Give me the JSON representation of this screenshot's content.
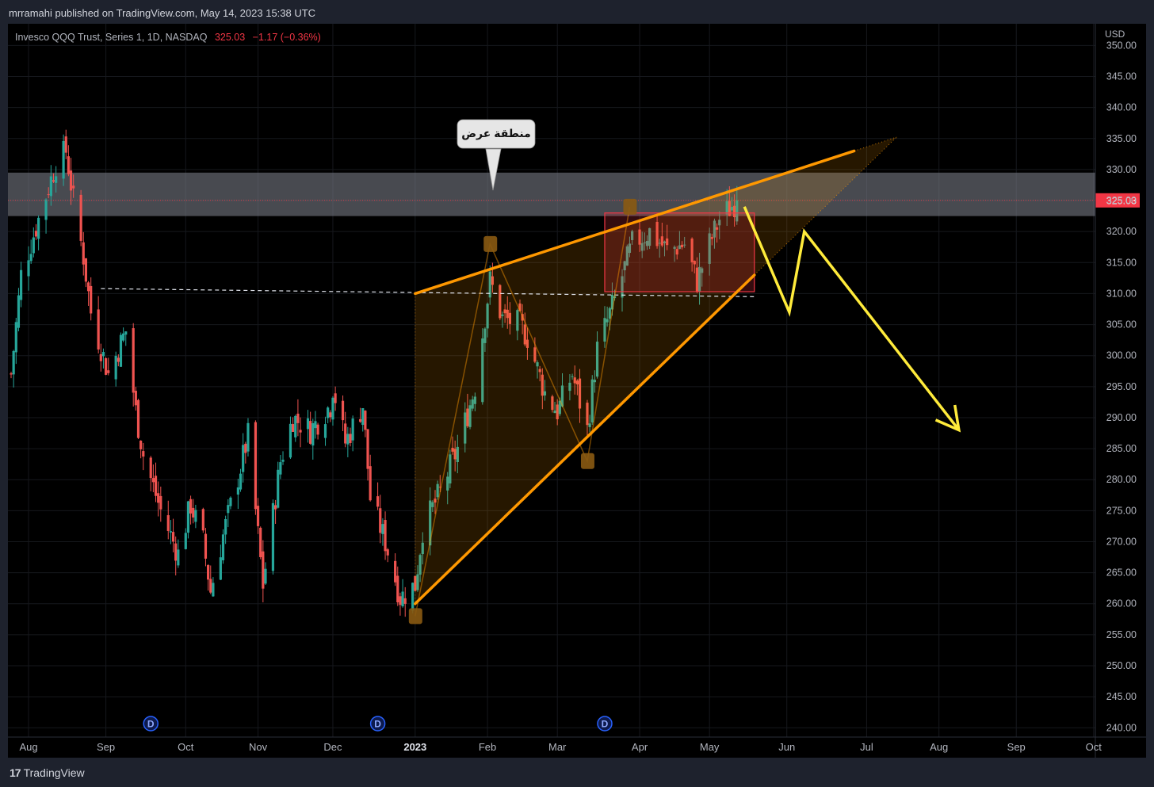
{
  "publish_line": "mrramahi published on TradingView.com, May 14, 2023 15:38 UTC",
  "legend": {
    "symbol_text": "Invesco QQQ Trust, Series 1, 1D, NASDAQ",
    "last": "325.03",
    "change": "−1.17 (−0.36%)"
  },
  "footer": {
    "logo_text": "TradingView"
  },
  "colors": {
    "up": "#26a69a",
    "down": "#ef5350",
    "wedge": "#ff9800",
    "projection": "#ffeb3b",
    "zone": "#787b86",
    "box": "#f23645"
  },
  "icons": [
    "tradingview-logo-icon",
    "dividend-icon"
  ],
  "chart_data": {
    "type": "candlestick",
    "currency_label": "USD",
    "y_ticks": [
      "350.00",
      "345.00",
      "340.00",
      "335.00",
      "330.00",
      "325.00",
      "320.00",
      "315.00",
      "310.00",
      "305.00",
      "300.00",
      "295.00",
      "290.00",
      "285.00",
      "280.00",
      "275.00",
      "270.00",
      "265.00",
      "260.00",
      "255.00",
      "250.00",
      "245.00",
      "240.00"
    ],
    "ylim": [
      238.5,
      353.5
    ],
    "x_start": "2022-07-25",
    "x_ticks": [
      {
        "label": "Aug",
        "date": "2022-08-01",
        "bold": false
      },
      {
        "label": "Sep",
        "date": "2022-09-01",
        "bold": false
      },
      {
        "label": "Oct",
        "date": "2022-10-03",
        "bold": false
      },
      {
        "label": "Nov",
        "date": "2022-11-01",
        "bold": false
      },
      {
        "label": "Dec",
        "date": "2022-12-01",
        "bold": false
      },
      {
        "label": "2023",
        "date": "2023-01-03",
        "bold": true
      },
      {
        "label": "Feb",
        "date": "2023-02-01",
        "bold": false
      },
      {
        "label": "Mar",
        "date": "2023-03-01",
        "bold": false
      },
      {
        "label": "Apr",
        "date": "2023-04-03",
        "bold": false
      },
      {
        "label": "May",
        "date": "2023-05-01",
        "bold": false
      },
      {
        "label": "Jun",
        "date": "2023-06-01",
        "bold": false
      },
      {
        "label": "Jul",
        "date": "2023-07-03",
        "bold": false
      },
      {
        "label": "Aug",
        "date": "2023-08-01",
        "bold": false
      },
      {
        "label": "Sep",
        "date": "2023-09-01",
        "bold": false
      },
      {
        "label": "Oct",
        "date": "2023-10-02",
        "bold": false
      }
    ],
    "price_path": [
      [
        "2022-07-25",
        297
      ],
      [
        "2022-07-29",
        313
      ],
      [
        "2022-08-05",
        322
      ],
      [
        "2022-08-12",
        331
      ],
      [
        "2022-08-16",
        333
      ],
      [
        "2022-08-19",
        325
      ],
      [
        "2022-08-23",
        316
      ],
      [
        "2022-08-26",
        307
      ],
      [
        "2022-09-02",
        297
      ],
      [
        "2022-09-09",
        304
      ],
      [
        "2022-09-13",
        291
      ],
      [
        "2022-09-16",
        284
      ],
      [
        "2022-09-23",
        275
      ],
      [
        "2022-09-30",
        268
      ],
      [
        "2022-10-05",
        276
      ],
      [
        "2022-10-10",
        270
      ],
      [
        "2022-10-13",
        262
      ],
      [
        "2022-10-18",
        271
      ],
      [
        "2022-10-25",
        282
      ],
      [
        "2022-10-28",
        287
      ],
      [
        "2022-11-03",
        263
      ],
      [
        "2022-11-10",
        283
      ],
      [
        "2022-11-15",
        290
      ],
      [
        "2022-11-22",
        288
      ],
      [
        "2022-11-30",
        292
      ],
      [
        "2022-12-01",
        295
      ],
      [
        "2022-12-06",
        286
      ],
      [
        "2022-12-13",
        292
      ],
      [
        "2022-12-16",
        277
      ],
      [
        "2022-12-22",
        270
      ],
      [
        "2022-12-28",
        261
      ],
      [
        "2023-01-03",
        263
      ],
      [
        "2023-01-06",
        272
      ],
      [
        "2023-01-13",
        278
      ],
      [
        "2023-01-20",
        285
      ],
      [
        "2023-01-27",
        295
      ],
      [
        "2023-02-02",
        312
      ],
      [
        "2023-02-07",
        306
      ],
      [
        "2023-02-14",
        305
      ],
      [
        "2023-02-17",
        303
      ],
      [
        "2023-02-24",
        294
      ],
      [
        "2023-03-01",
        291
      ],
      [
        "2023-03-07",
        297
      ],
      [
        "2023-03-13",
        288
      ],
      [
        "2023-03-17",
        301
      ],
      [
        "2023-03-24",
        309
      ],
      [
        "2023-03-31",
        318
      ],
      [
        "2023-04-07",
        320
      ],
      [
        "2023-04-14",
        317
      ],
      [
        "2023-04-21",
        318
      ],
      [
        "2023-04-26",
        312
      ],
      [
        "2023-05-01",
        318
      ],
      [
        "2023-05-05",
        322
      ],
      [
        "2023-05-12",
        325.03
      ]
    ],
    "annotations": {
      "supply_zone": {
        "label": "منطقة عرض",
        "low": 322.5,
        "high": 329.5
      },
      "last_price_line": 325.03,
      "dashed_level": {
        "value": 309.5,
        "from": "2022-08-30",
        "to": "2023-05-19"
      },
      "range_box": {
        "from": "2023-03-20",
        "to": "2023-05-19",
        "low": 310.3,
        "high": 323.0
      },
      "rising_wedge": {
        "upper": [
          [
            "2023-01-03",
            310
          ],
          [
            "2023-06-28",
            333
          ]
        ],
        "lower": [
          [
            "2023-01-03",
            260
          ],
          [
            "2023-05-19",
            313
          ]
        ]
      },
      "pivots": [
        [
          "2023-01-03",
          258
        ],
        [
          "2023-02-02",
          318
        ],
        [
          "2023-03-13",
          283
        ],
        [
          "2023-03-30",
          324
        ]
      ],
      "projection": [
        [
          "2023-05-15",
          324
        ],
        [
          "2023-06-02",
          307
        ],
        [
          "2023-06-08",
          320
        ],
        [
          "2023-08-09",
          288
        ]
      ],
      "dividend_dates": [
        "2022-09-19",
        "2022-12-19",
        "2023-03-20"
      ],
      "dividend_label": "D"
    }
  }
}
